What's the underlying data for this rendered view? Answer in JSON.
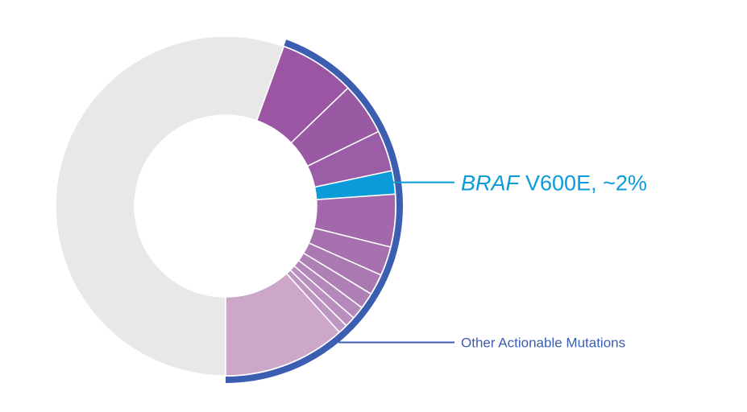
{
  "chart_data": {
    "type": "pie",
    "variant": "donut",
    "unit": "%",
    "segments": [
      {
        "value": 50.0,
        "color": "#e8e8e8"
      },
      {
        "value": 6.5,
        "color": "#9a55a3"
      },
      {
        "value": 4.5,
        "color": "#9a5aa3"
      },
      {
        "value": 3.5,
        "color": "#9b5ea6"
      },
      {
        "value": 2.0,
        "color": "#0a9bd8"
      },
      {
        "value": 4.5,
        "color": "#a368ac"
      },
      {
        "value": 2.5,
        "color": "#a671ae"
      },
      {
        "value": 1.8,
        "color": "#ab79b2"
      },
      {
        "value": 1.4,
        "color": "#af80b6"
      },
      {
        "value": 1.1,
        "color": "#b488ba"
      },
      {
        "value": 0.9,
        "color": "#b98fbe"
      },
      {
        "value": 0.8,
        "color": "#bd97c2"
      },
      {
        "value": 10.5,
        "color": "#cca7ca"
      }
    ],
    "highlight": {
      "gene": "BRAF",
      "mutation": "V600E, ~2%",
      "color": "#0a9bd8",
      "segment_index": 4
    },
    "group": {
      "label": "Other Actionable Mutations",
      "color": "#3c5eb0",
      "from_segment": 1,
      "to_segment": 12
    }
  }
}
